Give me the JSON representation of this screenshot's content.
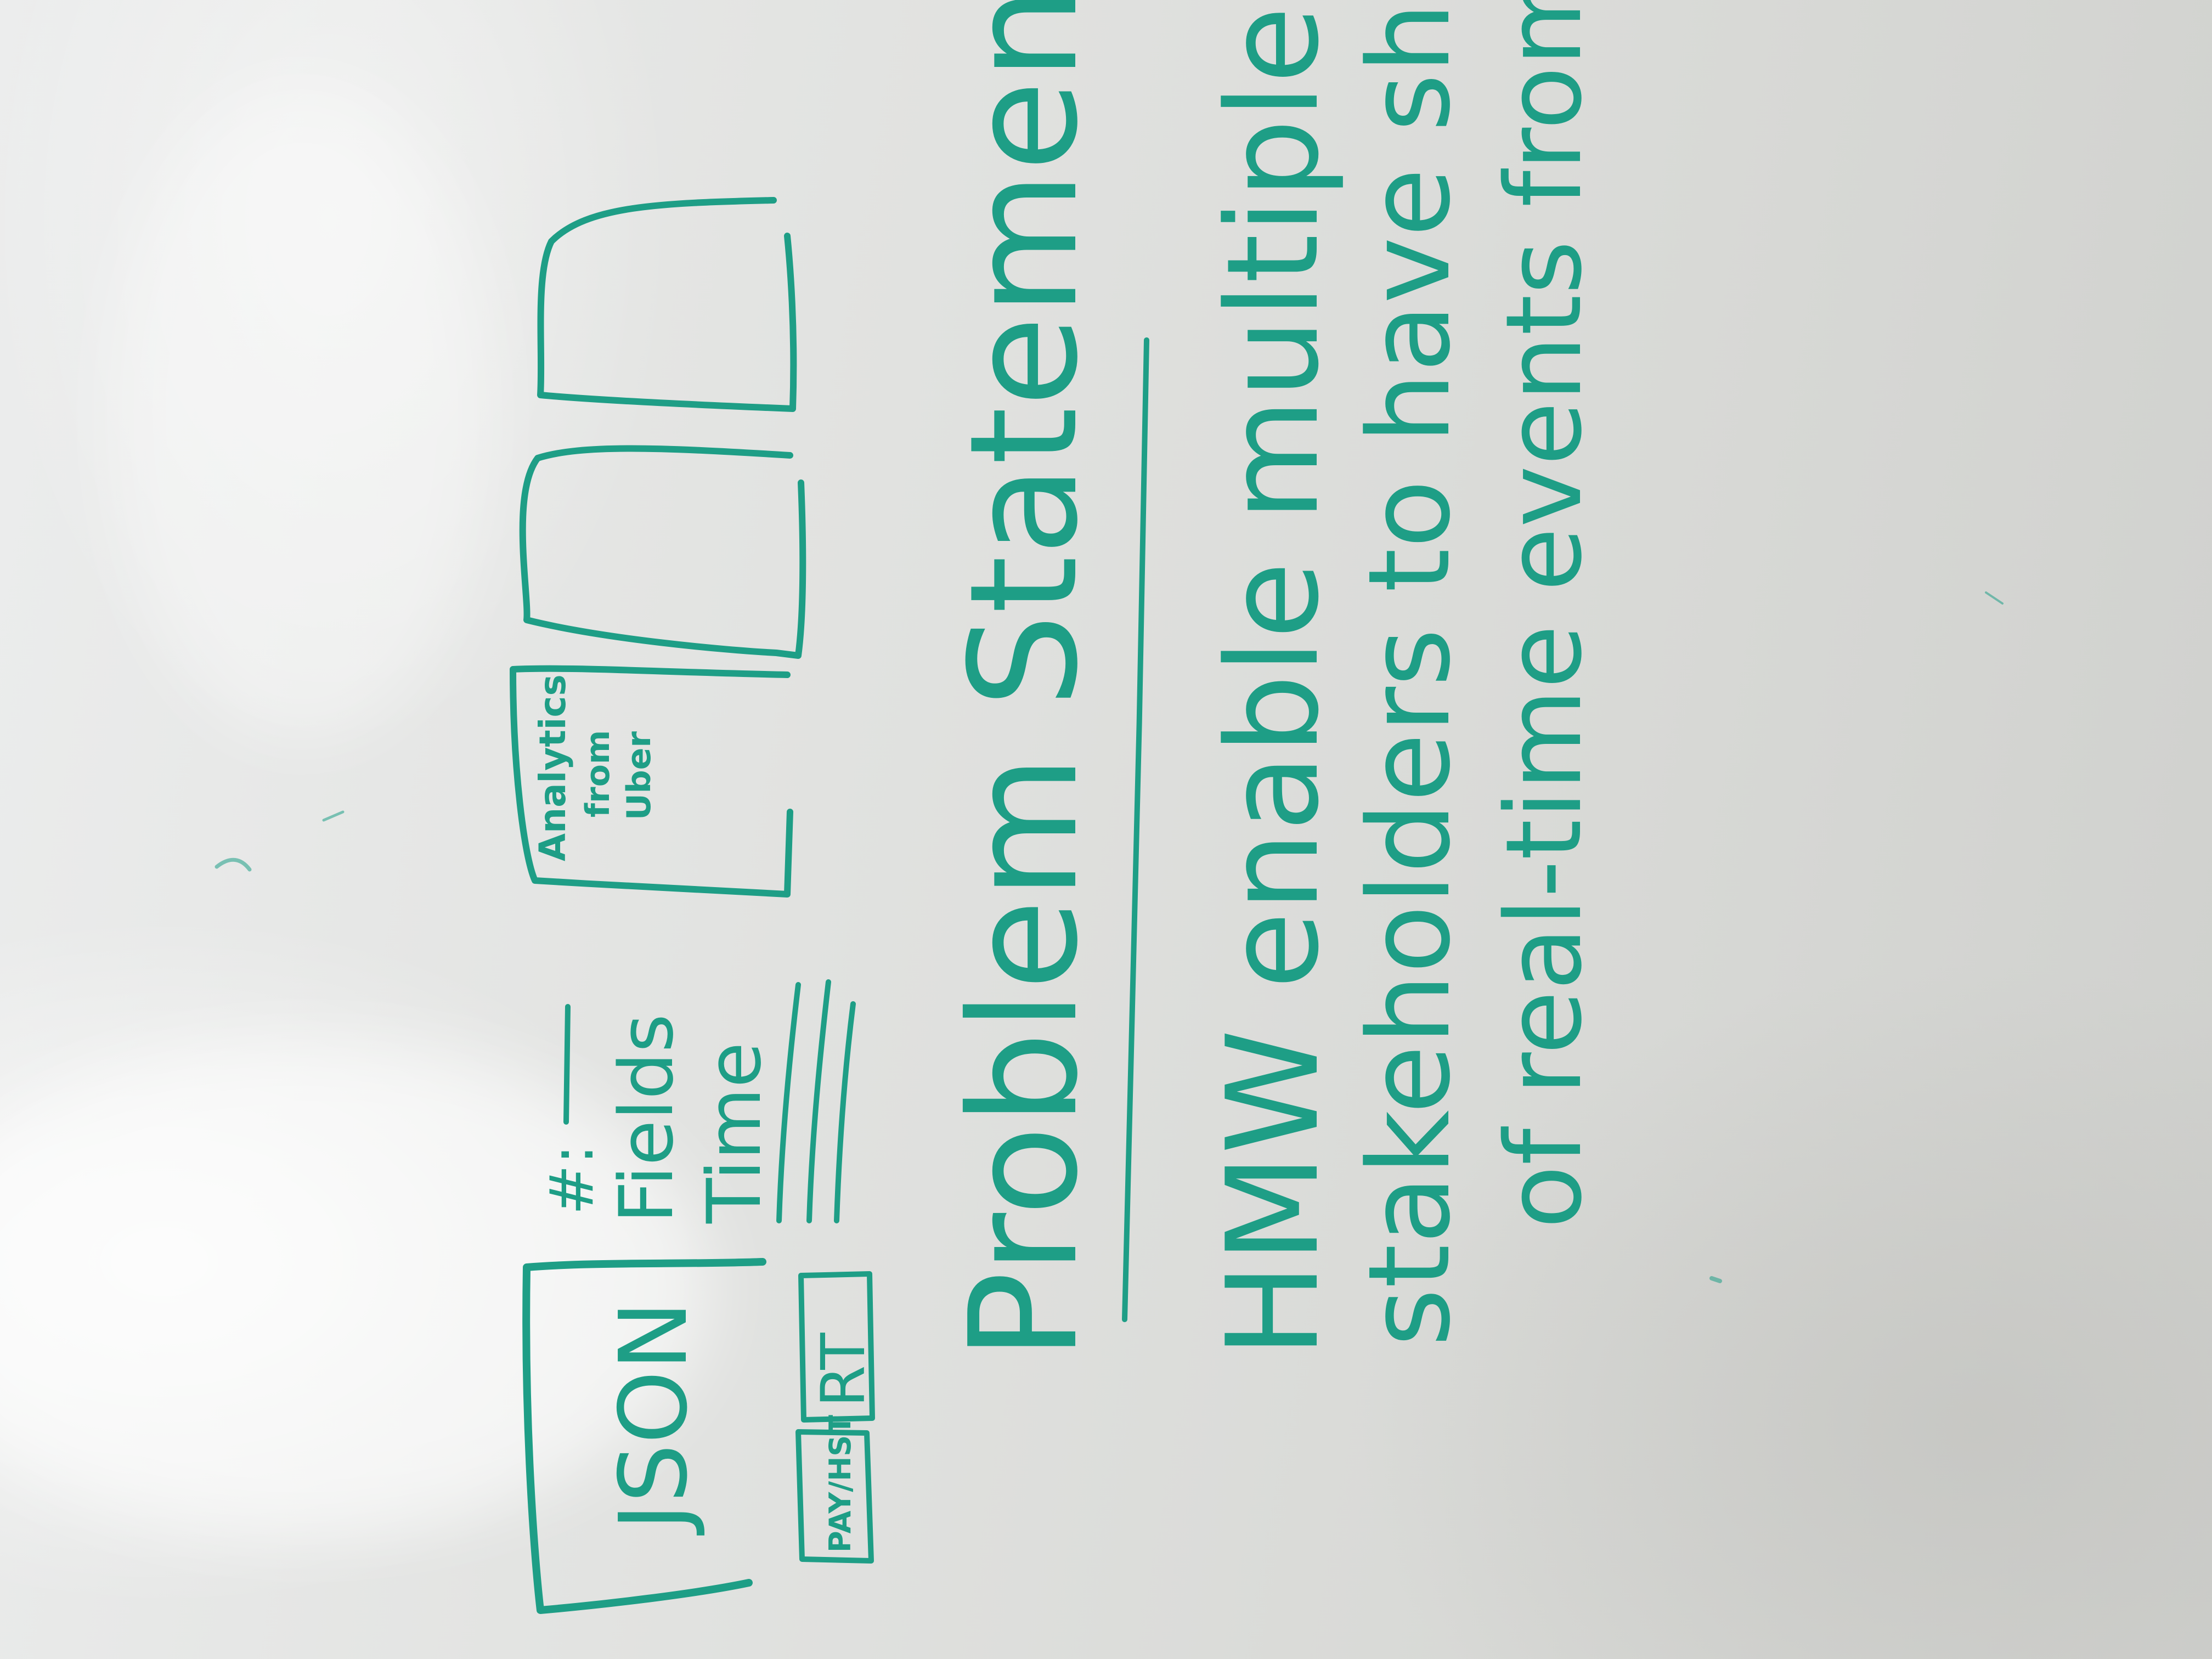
{
  "whiteboard": {
    "ink_color": "#1e9e86",
    "board_color": "#e2e3e1",
    "sketch": {
      "json_box_label": "JSON",
      "tab_left_label": "PAY/HST",
      "tab_right_label": "RT",
      "field_count_label": "#:",
      "fields_label": "Fields",
      "time_label": "Time",
      "analytics_box_label_line1": "Analytics",
      "analytics_box_label_line2": "from",
      "analytics_box_label_line3": "Uber"
    },
    "problem_statement": {
      "heading": "Problem Statement:",
      "line1": "HMW enable multiple",
      "line2": "stakeholders to have shared truth",
      "line3": "of real-time events from/"
    }
  }
}
